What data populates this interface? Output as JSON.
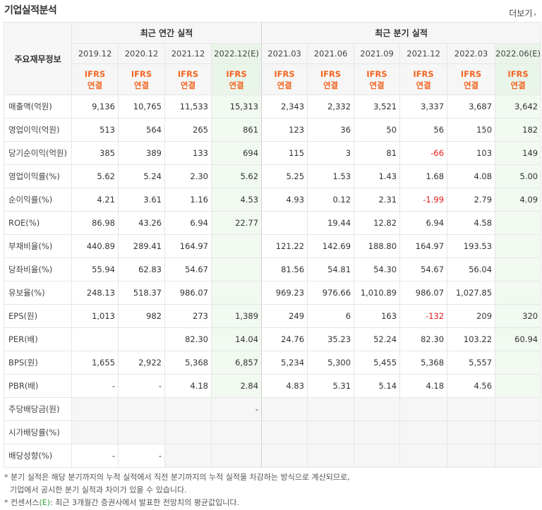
{
  "title": "기업실적분석",
  "more_label": "더보기",
  "header": {
    "row_label": "주요재무정보",
    "annual_group": "최근 연간 실적",
    "quarter_group": "최근 분기 실적",
    "annual_periods": [
      "2019.12",
      "2020.12",
      "2021.12",
      "2022.12(E)"
    ],
    "quarter_periods": [
      "2021.03",
      "2021.06",
      "2021.09",
      "2021.12",
      "2022.03",
      "2022.06(E)"
    ],
    "basis_top": "IFRS",
    "basis_bottom": "연결"
  },
  "rows": [
    {
      "label": "매출액(억원)",
      "values": [
        "9,136",
        "10,765",
        "11,533",
        "15,313",
        "2,343",
        "2,332",
        "3,521",
        "3,337",
        "3,687",
        "3,642"
      ]
    },
    {
      "label": "영업이익(억원)",
      "values": [
        "513",
        "564",
        "265",
        "861",
        "123",
        "36",
        "50",
        "56",
        "150",
        "182"
      ]
    },
    {
      "label": "당기순이익(억원)",
      "values": [
        "385",
        "389",
        "133",
        "694",
        "115",
        "3",
        "81",
        "-66",
        "103",
        "149"
      ]
    },
    {
      "label": "영업이익률(%)",
      "values": [
        "5.62",
        "5.24",
        "2.30",
        "5.62",
        "5.25",
        "1.53",
        "1.43",
        "1.68",
        "4.08",
        "5.00"
      ]
    },
    {
      "label": "순이익률(%)",
      "values": [
        "4.21",
        "3.61",
        "1.16",
        "4.53",
        "4.93",
        "0.12",
        "2.31",
        "-1.99",
        "2.79",
        "4.09"
      ]
    },
    {
      "label": "ROE(%)",
      "values": [
        "86.98",
        "43.26",
        "6.94",
        "22.77",
        "",
        "19.44",
        "12.82",
        "6.94",
        "4.58",
        ""
      ]
    },
    {
      "label": "부채비율(%)",
      "values": [
        "440.89",
        "289.41",
        "164.97",
        "",
        "121.22",
        "142.69",
        "188.80",
        "164.97",
        "193.53",
        ""
      ]
    },
    {
      "label": "당좌비율(%)",
      "values": [
        "55.94",
        "62.83",
        "54.67",
        "",
        "81.56",
        "54.81",
        "54.30",
        "54.67",
        "56.04",
        ""
      ]
    },
    {
      "label": "유보율(%)",
      "values": [
        "248.13",
        "518.37",
        "986.07",
        "",
        "969.23",
        "976.66",
        "1,010.89",
        "986.07",
        "1,027.85",
        ""
      ]
    },
    {
      "label": "EPS(원)",
      "values": [
        "1,013",
        "982",
        "273",
        "1,389",
        "249",
        "6",
        "163",
        "-132",
        "209",
        "320"
      ]
    },
    {
      "label": "PER(배)",
      "values": [
        "",
        "",
        "82.30",
        "14.04",
        "24.76",
        "35.23",
        "52.24",
        "82.30",
        "103.22",
        "60.94"
      ]
    },
    {
      "label": "BPS(원)",
      "values": [
        "1,655",
        "2,922",
        "5,368",
        "6,857",
        "5,234",
        "5,300",
        "5,455",
        "5,368",
        "5,557",
        ""
      ]
    },
    {
      "label": "PBR(배)",
      "values": [
        "-",
        "-",
        "4.18",
        "2.84",
        "4.83",
        "5.31",
        "5.14",
        "4.18",
        "4.56",
        ""
      ]
    },
    {
      "label": "주당배당금(원)",
      "values": [
        "",
        "",
        "",
        "-",
        "",
        "",
        "",
        "",
        "",
        ""
      ]
    },
    {
      "label": "시가배당률(%)",
      "values": [
        "",
        "",
        "",
        "",
        "",
        "",
        "",
        "",
        "",
        ""
      ]
    },
    {
      "label": "배당성향(%)",
      "values": [
        "-",
        "-",
        "",
        "",
        "",
        "",
        "",
        "",
        "",
        ""
      ]
    }
  ],
  "notes": {
    "line1": "* 분기 실적은 해당 분기까지의 누적 실적에서 직전 분기까지의 누적 실적을 차감하는 방식으로 계산되므로,",
    "line2": "기업에서 공시한 분기 실적과 차이가 있을 수 있습니다.",
    "line3_pre": "* 컨센서스",
    "line3_e": "(E)",
    "line3_post": ": 최근 3개월간 증권사에서 발표한 전망치의 평균값입니다."
  }
}
